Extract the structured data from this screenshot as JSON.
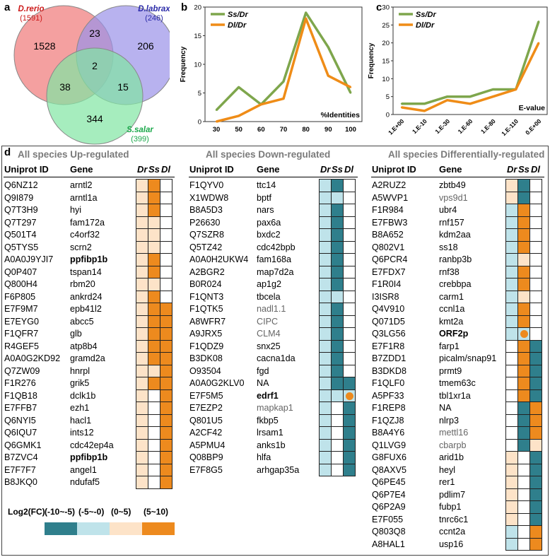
{
  "colors": {
    "dark_teal": "#2f7f8c",
    "light_blue": "#bfe3ea",
    "peach": "#fde3c8",
    "orange": "#ed8a1e",
    "white": "#ffffff",
    "ss_line": "#7ea64c",
    "dl_line": "#ef8c17",
    "venn_red": "#f08080",
    "venn_blue": "#9a92e8",
    "venn_green": "#80e6a2"
  },
  "panel_labels": {
    "a": "a",
    "b": "b",
    "c": "c",
    "d": "d"
  },
  "venn": {
    "sets": [
      {
        "name": "D.rerio",
        "count": "(1591)",
        "color": "#cc1a1a"
      },
      {
        "name": "D.labrax",
        "count": "(246)",
        "color": "#2a2aa8"
      },
      {
        "name": "S.salar",
        "count": "(399)",
        "color": "#1aa84a"
      }
    ],
    "regions": {
      "rerio_only": "1528",
      "labrax_only": "206",
      "salar_only": "344",
      "rerio_labrax": "23",
      "rerio_salar": "38",
      "labrax_salar": "15",
      "all": "2"
    }
  },
  "chart_data": [
    {
      "type": "line",
      "panel": "b",
      "title": "",
      "xlabel": "%Identities",
      "ylabel": "Frequency",
      "categories": [
        "30",
        "50",
        "60",
        "70",
        "80",
        "90",
        "100"
      ],
      "ylim": [
        0,
        20
      ],
      "yticks": [
        "0",
        "5",
        "10",
        "15",
        "20"
      ],
      "series": [
        {
          "name": "Ss/Dr",
          "values": [
            2,
            6,
            3,
            7,
            19,
            13,
            5
          ]
        },
        {
          "name": "Dl/Dr",
          "values": [
            0,
            1,
            3,
            4,
            18,
            8,
            6
          ]
        }
      ]
    },
    {
      "type": "line",
      "panel": "c",
      "title": "",
      "xlabel": "E-value",
      "ylabel": "Frequency",
      "categories": [
        "1.E+00",
        "1.E-10",
        "1.E-30",
        "1.E-60",
        "1.E-80",
        "1.E-110",
        "0.E+00"
      ],
      "ylim": [
        0,
        30
      ],
      "yticks": [
        "0",
        "5",
        "10",
        "15",
        "20",
        "25",
        "30"
      ],
      "series": [
        {
          "name": "Ss/Dr",
          "values": [
            3,
            3,
            5,
            5,
            7,
            7,
            26
          ]
        },
        {
          "name": "Dl/Dr",
          "values": [
            2,
            1,
            4,
            3,
            5,
            7,
            20
          ]
        }
      ]
    }
  ],
  "headers": {
    "uniprot": "Uniprot ID",
    "gene": "Gene",
    "dr": "Dr",
    "ss": "Ss",
    "dl": "Dl"
  },
  "tables": [
    {
      "title": "All species Up-regulated",
      "rows": [
        {
          "id": "Q6NZ12",
          "gene": "arntl2",
          "cells": [
            "P",
            "O",
            "W"
          ]
        },
        {
          "id": "Q9I879",
          "gene": "arntl1a",
          "cells": [
            "P",
            "O",
            "W"
          ]
        },
        {
          "id": "Q7T3H9",
          "gene": "hyi",
          "cells": [
            "P",
            "O",
            "W"
          ]
        },
        {
          "id": "Q7T297",
          "gene": "fam172a",
          "cells": [
            "P",
            "P",
            "W"
          ]
        },
        {
          "id": "Q501T4",
          "gene": "c4orf32",
          "cells": [
            "P",
            "P",
            "W"
          ]
        },
        {
          "id": "Q5TYS5",
          "gene": "scrn2",
          "cells": [
            "P",
            "P",
            "W"
          ]
        },
        {
          "id": "A0A0J9YJI7",
          "gene": "ppfibp1b",
          "style": "bold",
          "cells": [
            "P",
            "O",
            "W"
          ]
        },
        {
          "id": "Q0P407",
          "gene": "tspan14",
          "cells": [
            "P",
            "O",
            "W"
          ]
        },
        {
          "id": "Q800H4",
          "gene": "rbm20",
          "cells": [
            "P",
            "P",
            "W"
          ]
        },
        {
          "id": "F6P805",
          "gene": "ankrd24",
          "cells": [
            "P",
            "O",
            "W"
          ]
        },
        {
          "id": "E7F9M7",
          "gene": "epb41l2",
          "cells": [
            "P",
            "O",
            "O"
          ]
        },
        {
          "id": "E7EYG0",
          "gene": "abcc5",
          "cells": [
            "P",
            "O",
            "O"
          ]
        },
        {
          "id": "F1QFR7",
          "gene": "glb",
          "cells": [
            "P",
            "O",
            "O"
          ]
        },
        {
          "id": "R4GEF5",
          "gene": "atp8b4",
          "cells": [
            "P",
            "O",
            "O"
          ]
        },
        {
          "id": "A0A0G2KD92",
          "gene": "gramd2a",
          "cells": [
            "P",
            "O",
            "O"
          ]
        },
        {
          "id": "Q7ZW09",
          "gene": "hnrpl",
          "cells": [
            "P",
            "P",
            "O"
          ]
        },
        {
          "id": "F1R276",
          "gene": "grik5",
          "cells": [
            "P",
            "O",
            "O"
          ]
        },
        {
          "id": "F1QB18",
          "gene": "dclk1b",
          "cells": [
            "P",
            "W",
            "O"
          ]
        },
        {
          "id": "E7FFB7",
          "gene": "ezh1",
          "cells": [
            "P",
            "W",
            "O"
          ]
        },
        {
          "id": "Q6NYI5",
          "gene": "hacl1",
          "cells": [
            "P",
            "W",
            "O"
          ]
        },
        {
          "id": "Q6IQU7",
          "gene": "ints12",
          "cells": [
            "P",
            "W",
            "O"
          ]
        },
        {
          "id": "Q6GMK1",
          "gene": "cdc42ep4a",
          "cells": [
            "P",
            "W",
            "O"
          ]
        },
        {
          "id": "B7ZVC4",
          "gene": "ppfibp1b",
          "style": "bold",
          "cells": [
            "P",
            "W",
            "O"
          ]
        },
        {
          "id": "E7F7F7",
          "gene": "angel1",
          "cells": [
            "P",
            "W",
            "O"
          ]
        },
        {
          "id": "B8JKQ0",
          "gene": "ndufaf5",
          "cells": [
            "P",
            "W",
            "O"
          ]
        }
      ]
    },
    {
      "title": "All species Down-regulated",
      "rows": [
        {
          "id": "F1QYV0",
          "gene": "ttc14",
          "cells": [
            "L",
            "T",
            "W"
          ]
        },
        {
          "id": "X1WDW8",
          "gene": "bptf",
          "cells": [
            "L",
            "L",
            "W"
          ]
        },
        {
          "id": "B8A5D3",
          "gene": "nars",
          "cells": [
            "L",
            "T",
            "W"
          ]
        },
        {
          "id": "P26630",
          "gene": "pax6a",
          "cells": [
            "L",
            "T",
            "W"
          ]
        },
        {
          "id": "Q7SZR8",
          "gene": "bxdc2",
          "cells": [
            "L",
            "T",
            "W"
          ]
        },
        {
          "id": "Q5TZ42",
          "gene": "cdc42bpb",
          "cells": [
            "L",
            "T",
            "W"
          ]
        },
        {
          "id": "A0A0H2UKW4",
          "gene": "fam168a",
          "cells": [
            "L",
            "T",
            "W"
          ]
        },
        {
          "id": "A2BGR2",
          "gene": "map7d2a",
          "cells": [
            "L",
            "T",
            "W"
          ]
        },
        {
          "id": "B0R024",
          "gene": "ap1g2",
          "cells": [
            "L",
            "T",
            "W"
          ]
        },
        {
          "id": "F1QNT3",
          "gene": "tbcela",
          "cells": [
            "L",
            "L",
            "W"
          ]
        },
        {
          "id": "F1QTK5",
          "gene": "nadl1.1",
          "style": "grey",
          "cells": [
            "L",
            "T",
            "W"
          ]
        },
        {
          "id": "A8WFR7",
          "gene": "CIPC",
          "style": "grey",
          "cells": [
            "L",
            "T",
            "W"
          ]
        },
        {
          "id": "A9JRX5",
          "gene": "CLM4",
          "style": "grey",
          "cells": [
            "L",
            "T",
            "W"
          ]
        },
        {
          "id": "F1QDZ9",
          "gene": "snx25",
          "cells": [
            "L",
            "T",
            "W"
          ]
        },
        {
          "id": "B3DK08",
          "gene": "cacna1da",
          "cells": [
            "L",
            "T",
            "W"
          ]
        },
        {
          "id": "O93504",
          "gene": "fgd",
          "cells": [
            "L",
            "T",
            "W"
          ]
        },
        {
          "id": "A0A0G2KLV0",
          "gene": "NA",
          "cells": [
            "L",
            "T",
            "T"
          ]
        },
        {
          "id": "E7F5M5",
          "gene": "edrf1",
          "style": "bold",
          "cells": [
            "L",
            "L",
            "L"
          ],
          "dot": 2
        },
        {
          "id": "E7EZP2",
          "gene": "mapkap1",
          "style": "grey",
          "cells": [
            "L",
            "W",
            "T"
          ]
        },
        {
          "id": "Q801U5",
          "gene": "fkbp5",
          "cells": [
            "L",
            "W",
            "T"
          ]
        },
        {
          "id": "A2CF42",
          "gene": "lrsam1",
          "cells": [
            "L",
            "W",
            "T"
          ]
        },
        {
          "id": "A5PMU4",
          "gene": "anks1b",
          "cells": [
            "L",
            "W",
            "T"
          ]
        },
        {
          "id": "Q08BP9",
          "gene": "hlfa",
          "cells": [
            "L",
            "W",
            "T"
          ]
        },
        {
          "id": "E7F8G5",
          "gene": "arhgap35a",
          "cells": [
            "L",
            "W",
            "T"
          ]
        }
      ]
    },
    {
      "title": "All species Differentially-regulated",
      "rows": [
        {
          "id": "A2RUZ2",
          "gene": "zbtb49",
          "cells": [
            "P",
            "T",
            "W"
          ]
        },
        {
          "id": "A5WVP1",
          "gene": "vps9d1",
          "style": "grey",
          "cells": [
            "P",
            "T",
            "W"
          ]
        },
        {
          "id": "F1R984",
          "gene": "ubr4",
          "cells": [
            "L",
            "O",
            "W"
          ]
        },
        {
          "id": "E7FBW3",
          "gene": "rnf157",
          "cells": [
            "L",
            "O",
            "W"
          ]
        },
        {
          "id": "B8A652",
          "gene": "kdm2aa",
          "cells": [
            "L",
            "O",
            "W"
          ]
        },
        {
          "id": "Q802V1",
          "gene": "ss18",
          "cells": [
            "L",
            "O",
            "W"
          ]
        },
        {
          "id": "Q6PCR4",
          "gene": "ranbp3b",
          "cells": [
            "L",
            "P",
            "W"
          ]
        },
        {
          "id": "E7FDX7",
          "gene": "rnf38",
          "cells": [
            "L",
            "O",
            "W"
          ]
        },
        {
          "id": "F1R0I4",
          "gene": "crebbpa",
          "cells": [
            "L",
            "O",
            "W"
          ]
        },
        {
          "id": "I3ISR8",
          "gene": "carm1",
          "cells": [
            "L",
            "P",
            "W"
          ]
        },
        {
          "id": "Q4V910",
          "gene": "ccnl1a",
          "cells": [
            "L",
            "O",
            "W"
          ]
        },
        {
          "id": "Q071D5",
          "gene": "kmt2a",
          "cells": [
            "L",
            "O",
            "W"
          ]
        },
        {
          "id": "Q3LG56",
          "gene": "ORF2p",
          "style": "bold",
          "cells": [
            "L",
            "L",
            "W"
          ],
          "dot": 1
        },
        {
          "id": "E7F1R8",
          "gene": "farp1",
          "cells": [
            "W",
            "O",
            "T"
          ]
        },
        {
          "id": "B7ZDD1",
          "gene": "picalm/snap91",
          "cells": [
            "W",
            "O",
            "T"
          ]
        },
        {
          "id": "B3DKD8",
          "gene": "prmt9",
          "cells": [
            "W",
            "O",
            "T"
          ]
        },
        {
          "id": "F1QLF0",
          "gene": "tmem63c",
          "cells": [
            "W",
            "O",
            "T"
          ]
        },
        {
          "id": "A5PF33",
          "gene": "tbl1xr1a",
          "cells": [
            "W",
            "O",
            "T"
          ]
        },
        {
          "id": "F1REP8",
          "gene": "NA",
          "cells": [
            "W",
            "T",
            "O"
          ]
        },
        {
          "id": "F1QZJ8",
          "gene": "nlrp3",
          "cells": [
            "W",
            "T",
            "O"
          ]
        },
        {
          "id": "B8A4Y6",
          "gene": "mettl16",
          "style": "grey",
          "cells": [
            "W",
            "T",
            "O"
          ]
        },
        {
          "id": "Q1LVG9",
          "gene": "cbarpb",
          "style": "grey",
          "cells": [
            "W",
            "T",
            "P"
          ]
        },
        {
          "id": "G8FUX6",
          "gene": "arid1b",
          "cells": [
            "P",
            "W",
            "T"
          ]
        },
        {
          "id": "Q8AXV5",
          "gene": "heyl",
          "cells": [
            "P",
            "W",
            "T"
          ]
        },
        {
          "id": "Q6PE45",
          "gene": "rer1",
          "cells": [
            "P",
            "W",
            "T"
          ]
        },
        {
          "id": "Q6P7E4",
          "gene": "pdlim7",
          "cells": [
            "P",
            "W",
            "T"
          ]
        },
        {
          "id": "Q6P2A9",
          "gene": "fubp1",
          "cells": [
            "P",
            "W",
            "T"
          ]
        },
        {
          "id": "E7F055",
          "gene": "tnrc6c1",
          "cells": [
            "P",
            "W",
            "T"
          ]
        },
        {
          "id": "Q803Q8",
          "gene": "ccnt2a",
          "cells": [
            "L",
            "W",
            "O"
          ]
        },
        {
          "id": "A8HAL1",
          "gene": "usp16",
          "cells": [
            "L",
            "W",
            "O"
          ]
        }
      ]
    }
  ],
  "legend": {
    "label": "Log2(FC)",
    "items": [
      {
        "range": "(-10~-5)",
        "color": "#2f7f8c"
      },
      {
        "range": "(-5~-0)",
        "color": "#bfe3ea"
      },
      {
        "range": "(0~5)",
        "color": "#fde3c8"
      },
      {
        "range": "(5~10)",
        "color": "#ed8a1e"
      }
    ]
  }
}
